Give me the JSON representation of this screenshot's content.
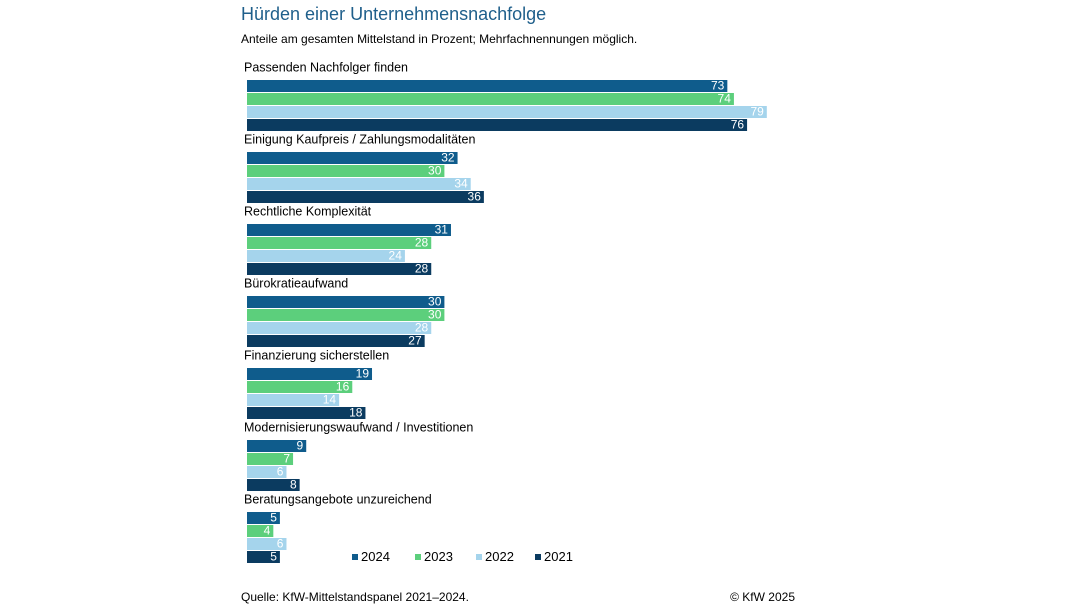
{
  "chart_data": {
    "type": "bar",
    "orientation": "horizontal",
    "title": "Hürden einer Unternehmensnachfolge",
    "subtitle": "Anteile am gesamten Mittelstand in Prozent; Mehrfachnennungen möglich.",
    "categories": [
      "Passenden Nachfolger finden",
      "Einigung Kaufpreis / Zahlungsmodalitäten",
      "Rechtliche Komplexität",
      "Bürokratieaufwand",
      "Finanzierung sicherstellen",
      "Modernisierungswaufwand / Investitionen",
      "Beratungsangebote unzureichend"
    ],
    "series": [
      {
        "name": "2024",
        "color": "#0f5c8c",
        "values": [
          73,
          32,
          31,
          30,
          19,
          9,
          5
        ]
      },
      {
        "name": "2023",
        "color": "#5ccf7c",
        "values": [
          74,
          30,
          28,
          30,
          16,
          7,
          4
        ]
      },
      {
        "name": "2022",
        "color": "#a5d4ec",
        "values": [
          79,
          34,
          24,
          28,
          14,
          6,
          6
        ]
      },
      {
        "name": "2021",
        "color": "#0b3b60",
        "values": [
          76,
          36,
          28,
          27,
          18,
          8,
          5
        ]
      }
    ],
    "legend": "bottom",
    "source": "Quelle: KfW-Mittelstandspanel 2021–2024.",
    "copyright": "© KfW 2025"
  }
}
